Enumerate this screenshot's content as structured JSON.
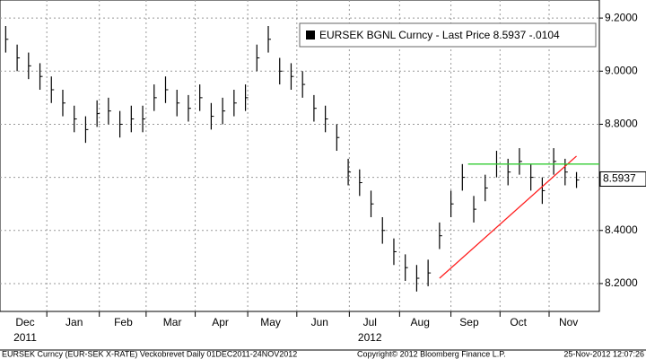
{
  "chart_data": {
    "type": "ohlc",
    "legend": "EURSEK BGNL Curncy - Last Price 8.5937 -.0104",
    "high": [
      9.17,
      9.1,
      9.07,
      9.03,
      8.98,
      8.93,
      8.87,
      8.83,
      8.89,
      8.9,
      8.85,
      8.87,
      8.87,
      8.95,
      8.98,
      8.93,
      8.91,
      8.95,
      8.88,
      8.9,
      8.93,
      8.95,
      9.1,
      9.17,
      9.05,
      9.03,
      9.0,
      8.91,
      8.87,
      8.8,
      8.67,
      8.63,
      8.55,
      8.45,
      8.37,
      8.31,
      8.27,
      8.29,
      8.43,
      8.55,
      8.65,
      8.53,
      8.61,
      8.7,
      8.67,
      8.71,
      8.65,
      8.6,
      8.71,
      8.67,
      8.62
    ],
    "low": [
      9.07,
      9.0,
      8.97,
      8.93,
      8.88,
      8.83,
      8.77,
      8.73,
      8.79,
      8.8,
      8.75,
      8.77,
      8.77,
      8.85,
      8.88,
      8.83,
      8.81,
      8.85,
      8.78,
      8.8,
      8.83,
      8.85,
      9.0,
      9.07,
      8.95,
      8.93,
      8.9,
      8.81,
      8.77,
      8.7,
      8.57,
      8.53,
      8.45,
      8.35,
      8.27,
      8.21,
      8.17,
      8.19,
      8.33,
      8.45,
      8.55,
      8.43,
      8.51,
      8.6,
      8.57,
      8.61,
      8.55,
      8.5,
      8.61,
      8.57,
      8.56
    ],
    "close": [
      9.12,
      9.05,
      9.02,
      8.98,
      8.93,
      8.88,
      8.82,
      8.78,
      8.84,
      8.85,
      8.8,
      8.82,
      8.82,
      8.9,
      8.93,
      8.88,
      8.86,
      8.9,
      8.83,
      8.85,
      8.88,
      8.9,
      9.05,
      9.12,
      9.0,
      8.98,
      8.95,
      8.86,
      8.82,
      8.75,
      8.62,
      8.58,
      8.5,
      8.4,
      8.32,
      8.26,
      8.22,
      8.24,
      8.38,
      8.5,
      8.6,
      8.48,
      8.56,
      8.65,
      8.62,
      8.66,
      8.6,
      8.55,
      8.66,
      8.62,
      8.59
    ],
    "last_price": {
      "value": 8.5937,
      "label": "8.5937"
    },
    "trendlines": [
      {
        "color": "#ff2020",
        "x": [
          38,
          50
        ],
        "y": [
          8.22,
          8.68
        ]
      },
      {
        "color": "#33cc33",
        "x": [
          40.5,
          52
        ],
        "y": [
          8.65,
          8.65
        ]
      }
    ],
    "xlim": [
      -0.5,
      52
    ],
    "ylim": [
      8.095,
      9.268
    ],
    "yticks": [
      {
        "value": 8.2,
        "label": "8.2000"
      },
      {
        "value": 8.4,
        "label": "8.4000"
      },
      {
        "value": 8.6,
        "label": "8.6000"
      },
      {
        "value": 8.8,
        "label": "8.8000"
      },
      {
        "value": 9.0,
        "label": "9.0000"
      },
      {
        "value": 9.2,
        "label": "9.2000"
      }
    ],
    "xgrid": [
      3.6,
      8.2,
      12.3,
      16.6,
      21.2,
      25.5,
      30.1,
      34.5,
      39,
      43.3,
      47.6
    ],
    "xticks": [
      {
        "value": 1.7,
        "label": "Dec"
      },
      {
        "value": 6,
        "label": "Jan"
      },
      {
        "value": 10.3,
        "label": "Feb"
      },
      {
        "value": 14.6,
        "label": "Mar"
      },
      {
        "value": 18.8,
        "label": "Apr"
      },
      {
        "value": 23.2,
        "label": "May"
      },
      {
        "value": 27.5,
        "label": "Jun"
      },
      {
        "value": 31.9,
        "label": "Jul"
      },
      {
        "value": 36.3,
        "label": "Aug"
      },
      {
        "value": 40.6,
        "label": "Sep"
      },
      {
        "value": 44.9,
        "label": "Oct"
      },
      {
        "value": 49.3,
        "label": "Nov"
      }
    ],
    "years": [
      {
        "value": 1.7,
        "label": "2011"
      },
      {
        "value": 31.9,
        "label": "2012"
      }
    ],
    "footer": {
      "left": "EURSEK Curncy (EUR-SEK X-RATE) Veckobrevet  Daily 01DEC2011-24NOV2012",
      "center": "Copyright© 2012 Bloomberg Finance L.P.",
      "right": "25-Nov-2012 12:07:26"
    },
    "grid": true
  }
}
